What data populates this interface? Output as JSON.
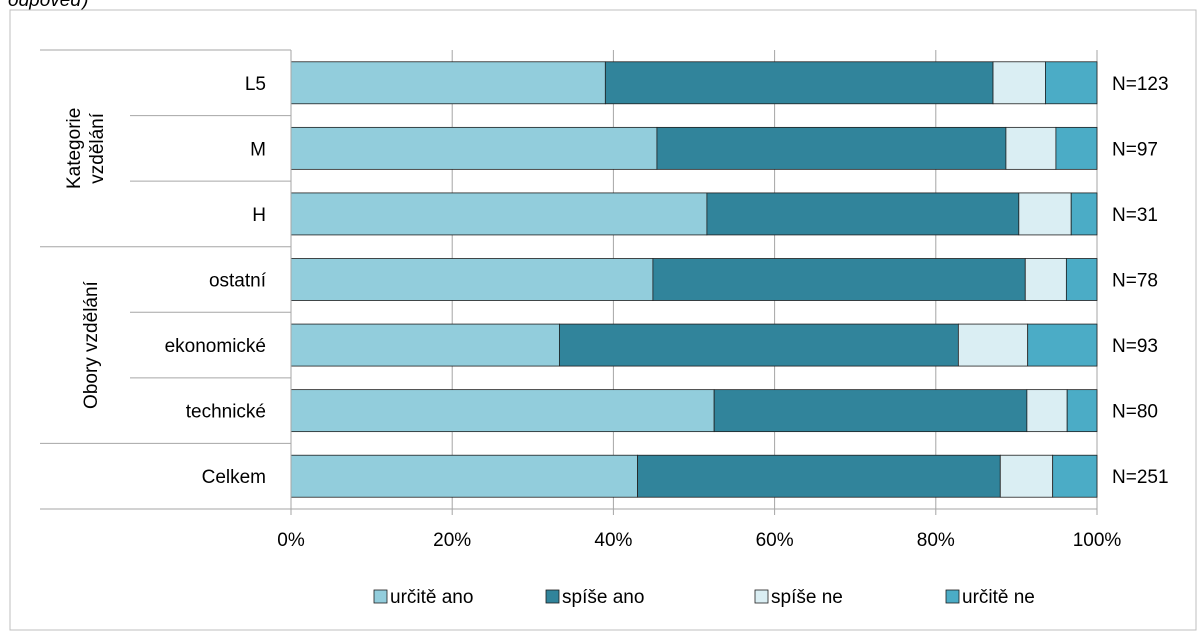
{
  "caption_fragment": "odpověď)",
  "chart_data": {
    "type": "bar",
    "orientation": "horizontal",
    "stacked": "percent",
    "categories": [
      "L5",
      "M",
      "H",
      "ostatní",
      "ekonomické",
      "technické",
      "Celkem"
    ],
    "groups": [
      {
        "label": "Kategorie vzdělání",
        "categories": [
          "L5",
          "M",
          "H"
        ]
      },
      {
        "label": "Obory vzdělání",
        "categories": [
          "ostatní",
          "ekonomické",
          "technické"
        ]
      }
    ],
    "series": [
      {
        "name": "určitě ano",
        "color": "#92CDDC",
        "values": [
          39,
          45.4,
          51.6,
          44.9,
          33.3,
          52.5,
          43
        ]
      },
      {
        "name": "spíše ano",
        "color": "#31849B",
        "values": [
          48.1,
          43.3,
          38.7,
          46.2,
          49.5,
          38.8,
          45
        ]
      },
      {
        "name": "spíše ne",
        "color": "#DAEEF3",
        "values": [
          6.5,
          6.2,
          6.5,
          5.1,
          8.6,
          5,
          6.5
        ]
      },
      {
        "name": "určitě ne",
        "color": "#4BACC6",
        "values": [
          6.4,
          5.1,
          3.2,
          3.8,
          8.6,
          3.7,
          5.5
        ]
      }
    ],
    "n_labels": [
      "N=123",
      "N=97",
      "N=31",
      "N=78",
      "N=93",
      "N=80",
      "N=251"
    ],
    "x_ticks": [
      "0%",
      "20%",
      "40%",
      "60%",
      "80%",
      "100%"
    ],
    "xlim": [
      0,
      100
    ],
    "grid": true,
    "legend_position": "bottom"
  }
}
